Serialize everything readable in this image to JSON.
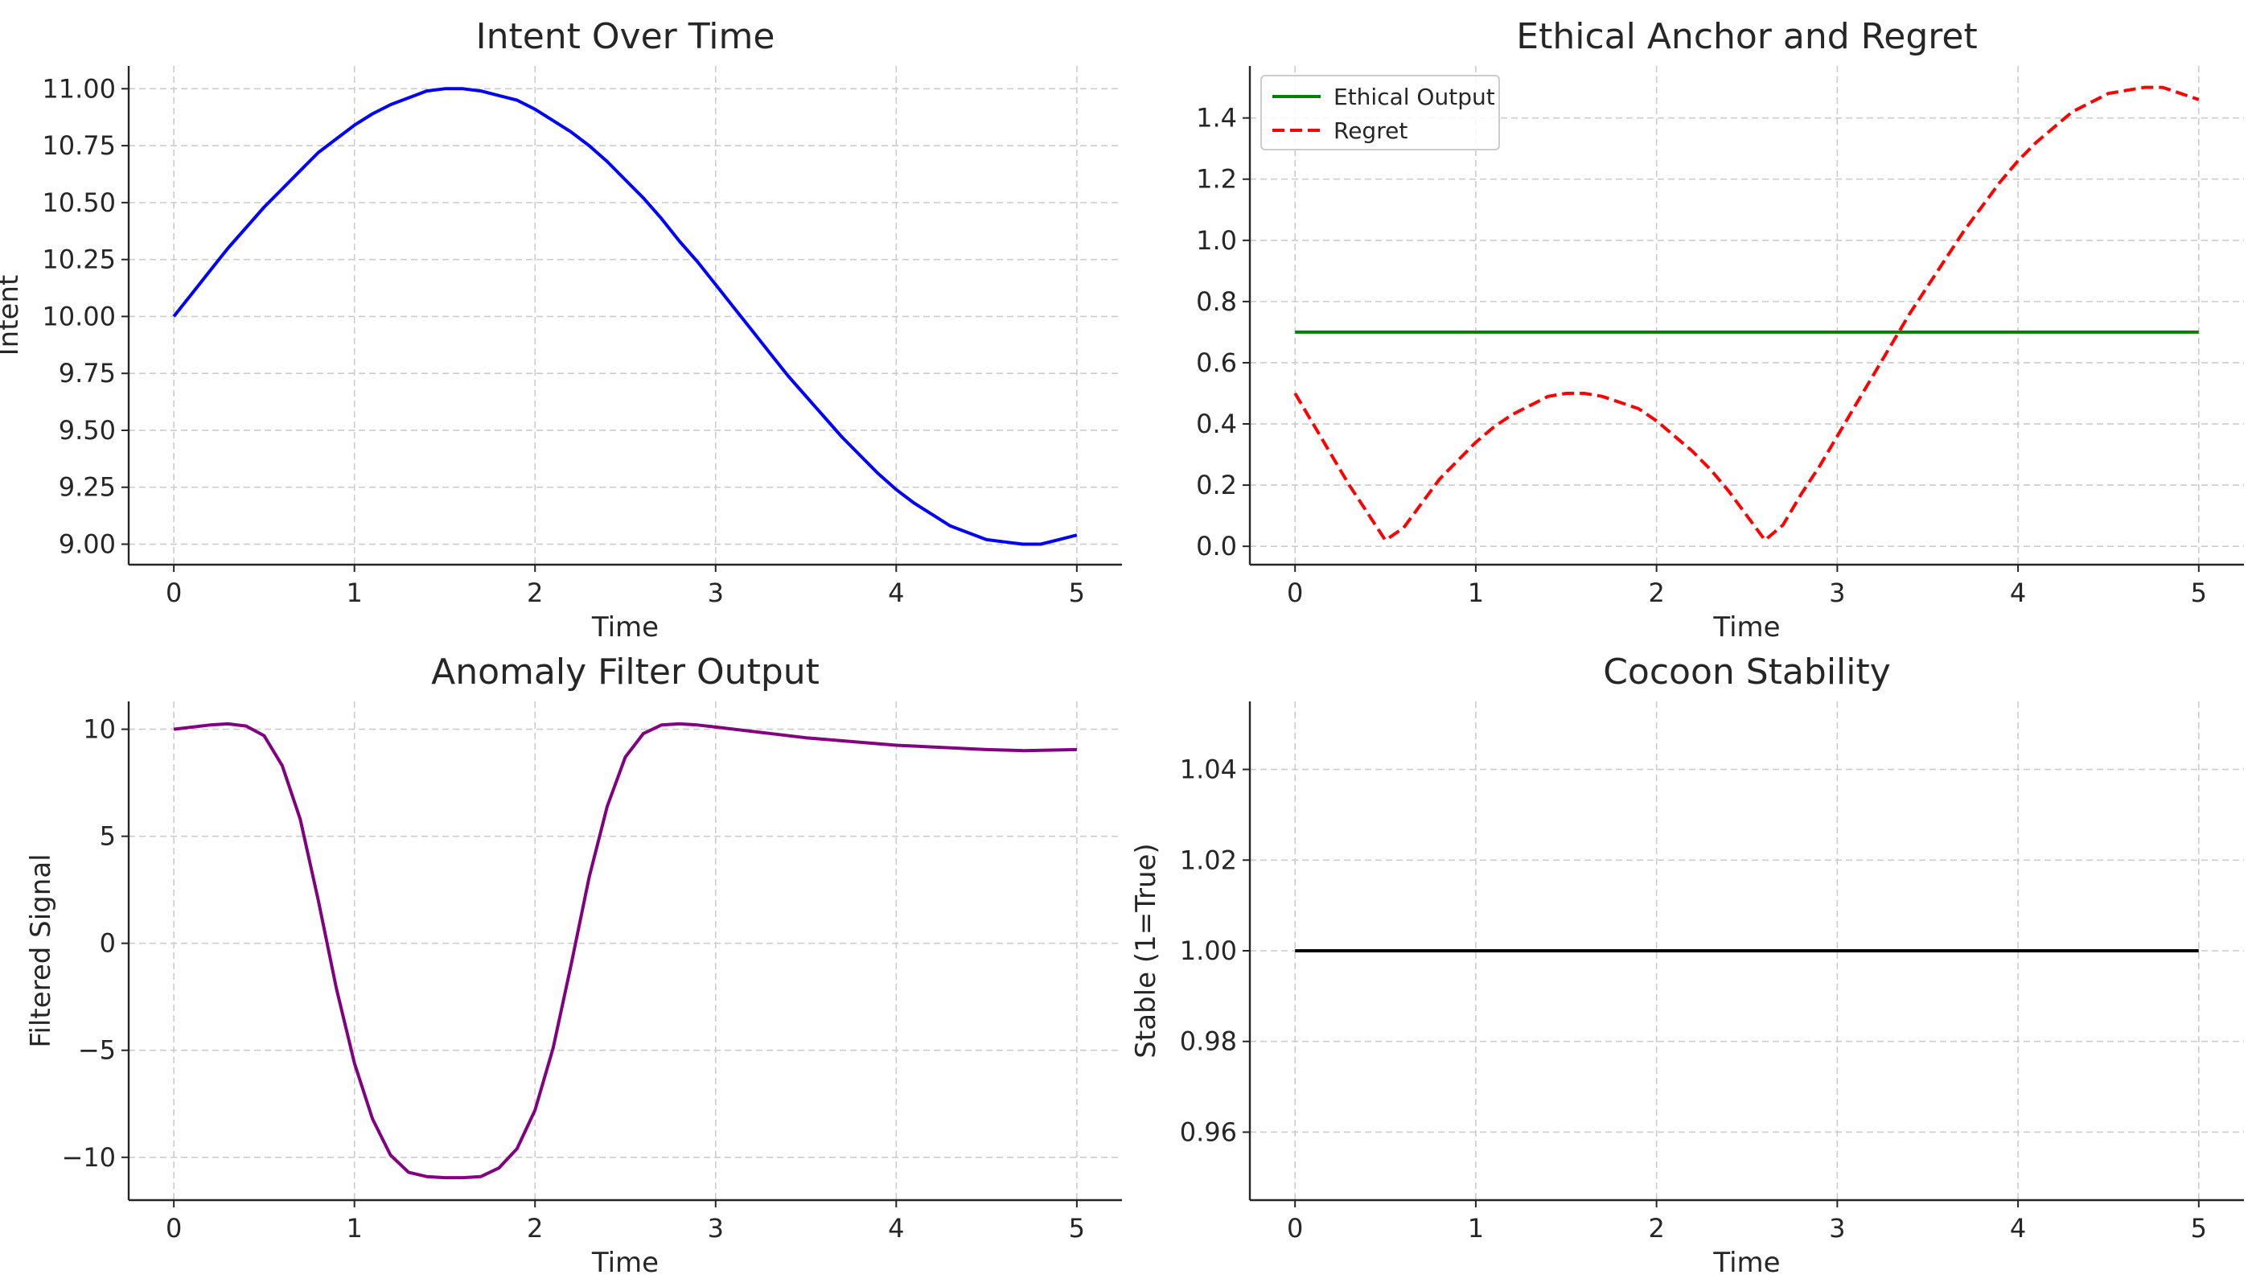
{
  "chart_data": [
    {
      "id": "intent",
      "type": "line",
      "title": "Intent Over Time",
      "xlabel": "Time",
      "ylabel": "Intent",
      "xlim": [
        -0.25,
        5.25
      ],
      "ylim": [
        8.91,
        11.1
      ],
      "xticks": [
        0,
        1,
        2,
        3,
        4,
        5
      ],
      "xtick_labels": [
        "0",
        "1",
        "2",
        "3",
        "4",
        "5"
      ],
      "yticks": [
        9.0,
        9.25,
        9.5,
        9.75,
        10.0,
        10.25,
        10.5,
        10.75,
        11.0
      ],
      "ytick_labels": [
        "9.00",
        "9.25",
        "9.50",
        "9.75",
        "10.00",
        "10.25",
        "10.50",
        "10.75",
        "11.00"
      ],
      "grid": true,
      "series": [
        {
          "name": "Intent",
          "color": "#0000ff",
          "style": "solid",
          "x": [
            0,
            0.1,
            0.2,
            0.3,
            0.4,
            0.5,
            0.6,
            0.7,
            0.8,
            0.9,
            1.0,
            1.1,
            1.2,
            1.3,
            1.4,
            1.5,
            1.6,
            1.7,
            1.8,
            1.9,
            2.0,
            2.1,
            2.2,
            2.3,
            2.4,
            2.5,
            2.6,
            2.7,
            2.8,
            2.9,
            3.0,
            3.1,
            3.2,
            3.3,
            3.4,
            3.5,
            3.6,
            3.7,
            3.8,
            3.9,
            4.0,
            4.1,
            4.2,
            4.3,
            4.4,
            4.5,
            4.6,
            4.7,
            4.8,
            4.9,
            5.0
          ],
          "y": [
            10.0,
            10.1,
            10.2,
            10.3,
            10.39,
            10.48,
            10.56,
            10.64,
            10.72,
            10.78,
            10.84,
            10.89,
            10.93,
            10.96,
            10.99,
            11.0,
            11.0,
            10.99,
            10.97,
            10.95,
            10.91,
            10.86,
            10.81,
            10.75,
            10.68,
            10.6,
            10.52,
            10.43,
            10.33,
            10.24,
            10.14,
            10.04,
            9.94,
            9.84,
            9.74,
            9.65,
            9.56,
            9.47,
            9.39,
            9.31,
            9.24,
            9.18,
            9.13,
            9.08,
            9.05,
            9.02,
            9.01,
            9.0,
            9.0,
            9.02,
            9.04
          ]
        }
      ]
    },
    {
      "id": "ethical",
      "type": "line",
      "title": "Ethical Anchor and Regret",
      "xlabel": "Time",
      "ylabel": "",
      "xlim": [
        -0.25,
        5.25
      ],
      "ylim": [
        -0.06,
        1.57
      ],
      "xticks": [
        0,
        1,
        2,
        3,
        4,
        5
      ],
      "xtick_labels": [
        "0",
        "1",
        "2",
        "3",
        "4",
        "5"
      ],
      "yticks": [
        0.0,
        0.2,
        0.4,
        0.6,
        0.8,
        1.0,
        1.2,
        1.4
      ],
      "ytick_labels": [
        "0.0",
        "0.2",
        "0.4",
        "0.6",
        "0.8",
        "1.0",
        "1.2",
        "1.4"
      ],
      "grid": true,
      "legend": {
        "position": "top-left",
        "entries": [
          "Ethical Output",
          "Regret"
        ]
      },
      "series": [
        {
          "name": "Ethical Output",
          "color": "#008000",
          "style": "solid",
          "x": [
            0,
            5
          ],
          "y": [
            0.7,
            0.7
          ]
        },
        {
          "name": "Regret",
          "color": "#ff0000",
          "style": "dashed",
          "x": [
            0,
            0.1,
            0.2,
            0.3,
            0.4,
            0.5,
            0.6,
            0.7,
            0.8,
            0.9,
            1.0,
            1.1,
            1.2,
            1.3,
            1.4,
            1.5,
            1.6,
            1.7,
            1.8,
            1.9,
            2.0,
            2.1,
            2.2,
            2.3,
            2.4,
            2.5,
            2.6,
            2.7,
            2.8,
            2.9,
            3.0,
            3.1,
            3.2,
            3.3,
            3.4,
            3.5,
            3.6,
            3.7,
            3.8,
            3.9,
            4.0,
            4.1,
            4.2,
            4.3,
            4.4,
            4.5,
            4.6,
            4.7,
            4.8,
            4.9,
            5.0
          ],
          "y": [
            0.5,
            0.4,
            0.3,
            0.2,
            0.11,
            0.02,
            0.06,
            0.14,
            0.22,
            0.28,
            0.34,
            0.39,
            0.43,
            0.46,
            0.49,
            0.5,
            0.5,
            0.49,
            0.47,
            0.45,
            0.41,
            0.36,
            0.31,
            0.25,
            0.18,
            0.1,
            0.02,
            0.07,
            0.17,
            0.26,
            0.36,
            0.46,
            0.56,
            0.66,
            0.76,
            0.85,
            0.94,
            1.03,
            1.11,
            1.19,
            1.26,
            1.32,
            1.37,
            1.42,
            1.45,
            1.48,
            1.49,
            1.5,
            1.5,
            1.48,
            1.46
          ]
        }
      ]
    },
    {
      "id": "anomaly",
      "type": "line",
      "title": "Anomaly Filter Output",
      "xlabel": "Time",
      "ylabel": "Filtered Signal",
      "xlim": [
        -0.25,
        5.25
      ],
      "ylim": [
        -12.0,
        11.3
      ],
      "xticks": [
        0,
        1,
        2,
        3,
        4,
        5
      ],
      "xtick_labels": [
        "0",
        "1",
        "2",
        "3",
        "4",
        "5"
      ],
      "yticks": [
        -10,
        -5,
        0,
        5,
        10
      ],
      "ytick_labels": [
        "−10",
        "−5",
        "0",
        "5",
        "10"
      ],
      "grid": true,
      "series": [
        {
          "name": "Filtered Signal",
          "color": "#800080",
          "style": "solid",
          "x": [
            0,
            0.2,
            0.3,
            0.4,
            0.5,
            0.6,
            0.7,
            0.8,
            0.9,
            1.0,
            1.1,
            1.2,
            1.3,
            1.4,
            1.5,
            1.6,
            1.7,
            1.8,
            1.9,
            2.0,
            2.1,
            2.2,
            2.3,
            2.4,
            2.5,
            2.6,
            2.7,
            2.8,
            2.9,
            3.0,
            3.5,
            4.0,
            4.5,
            4.7,
            5.0
          ],
          "y": [
            10.0,
            10.2,
            10.25,
            10.15,
            9.7,
            8.3,
            5.8,
            2.0,
            -2.1,
            -5.6,
            -8.2,
            -9.9,
            -10.7,
            -10.9,
            -10.95,
            -10.95,
            -10.9,
            -10.5,
            -9.6,
            -7.8,
            -4.9,
            -1.0,
            3.1,
            6.4,
            8.7,
            9.8,
            10.2,
            10.25,
            10.2,
            10.1,
            9.6,
            9.25,
            9.05,
            9.0,
            9.05
          ]
        }
      ]
    },
    {
      "id": "cocoon",
      "type": "line",
      "title": "Cocoon Stability",
      "xlabel": "Time",
      "ylabel": "Stable (1=True)",
      "xlim": [
        -0.25,
        5.25
      ],
      "ylim": [
        0.945,
        1.055
      ],
      "xticks": [
        0,
        1,
        2,
        3,
        4,
        5
      ],
      "xtick_labels": [
        "0",
        "1",
        "2",
        "3",
        "4",
        "5"
      ],
      "yticks": [
        0.96,
        0.98,
        1.0,
        1.02,
        1.04
      ],
      "ytick_labels": [
        "0.96",
        "0.98",
        "1.00",
        "1.02",
        "1.04"
      ],
      "grid": true,
      "series": [
        {
          "name": "Stable",
          "color": "#000000",
          "style": "solid",
          "x": [
            0,
            5
          ],
          "y": [
            1.0,
            1.0
          ]
        }
      ]
    }
  ]
}
